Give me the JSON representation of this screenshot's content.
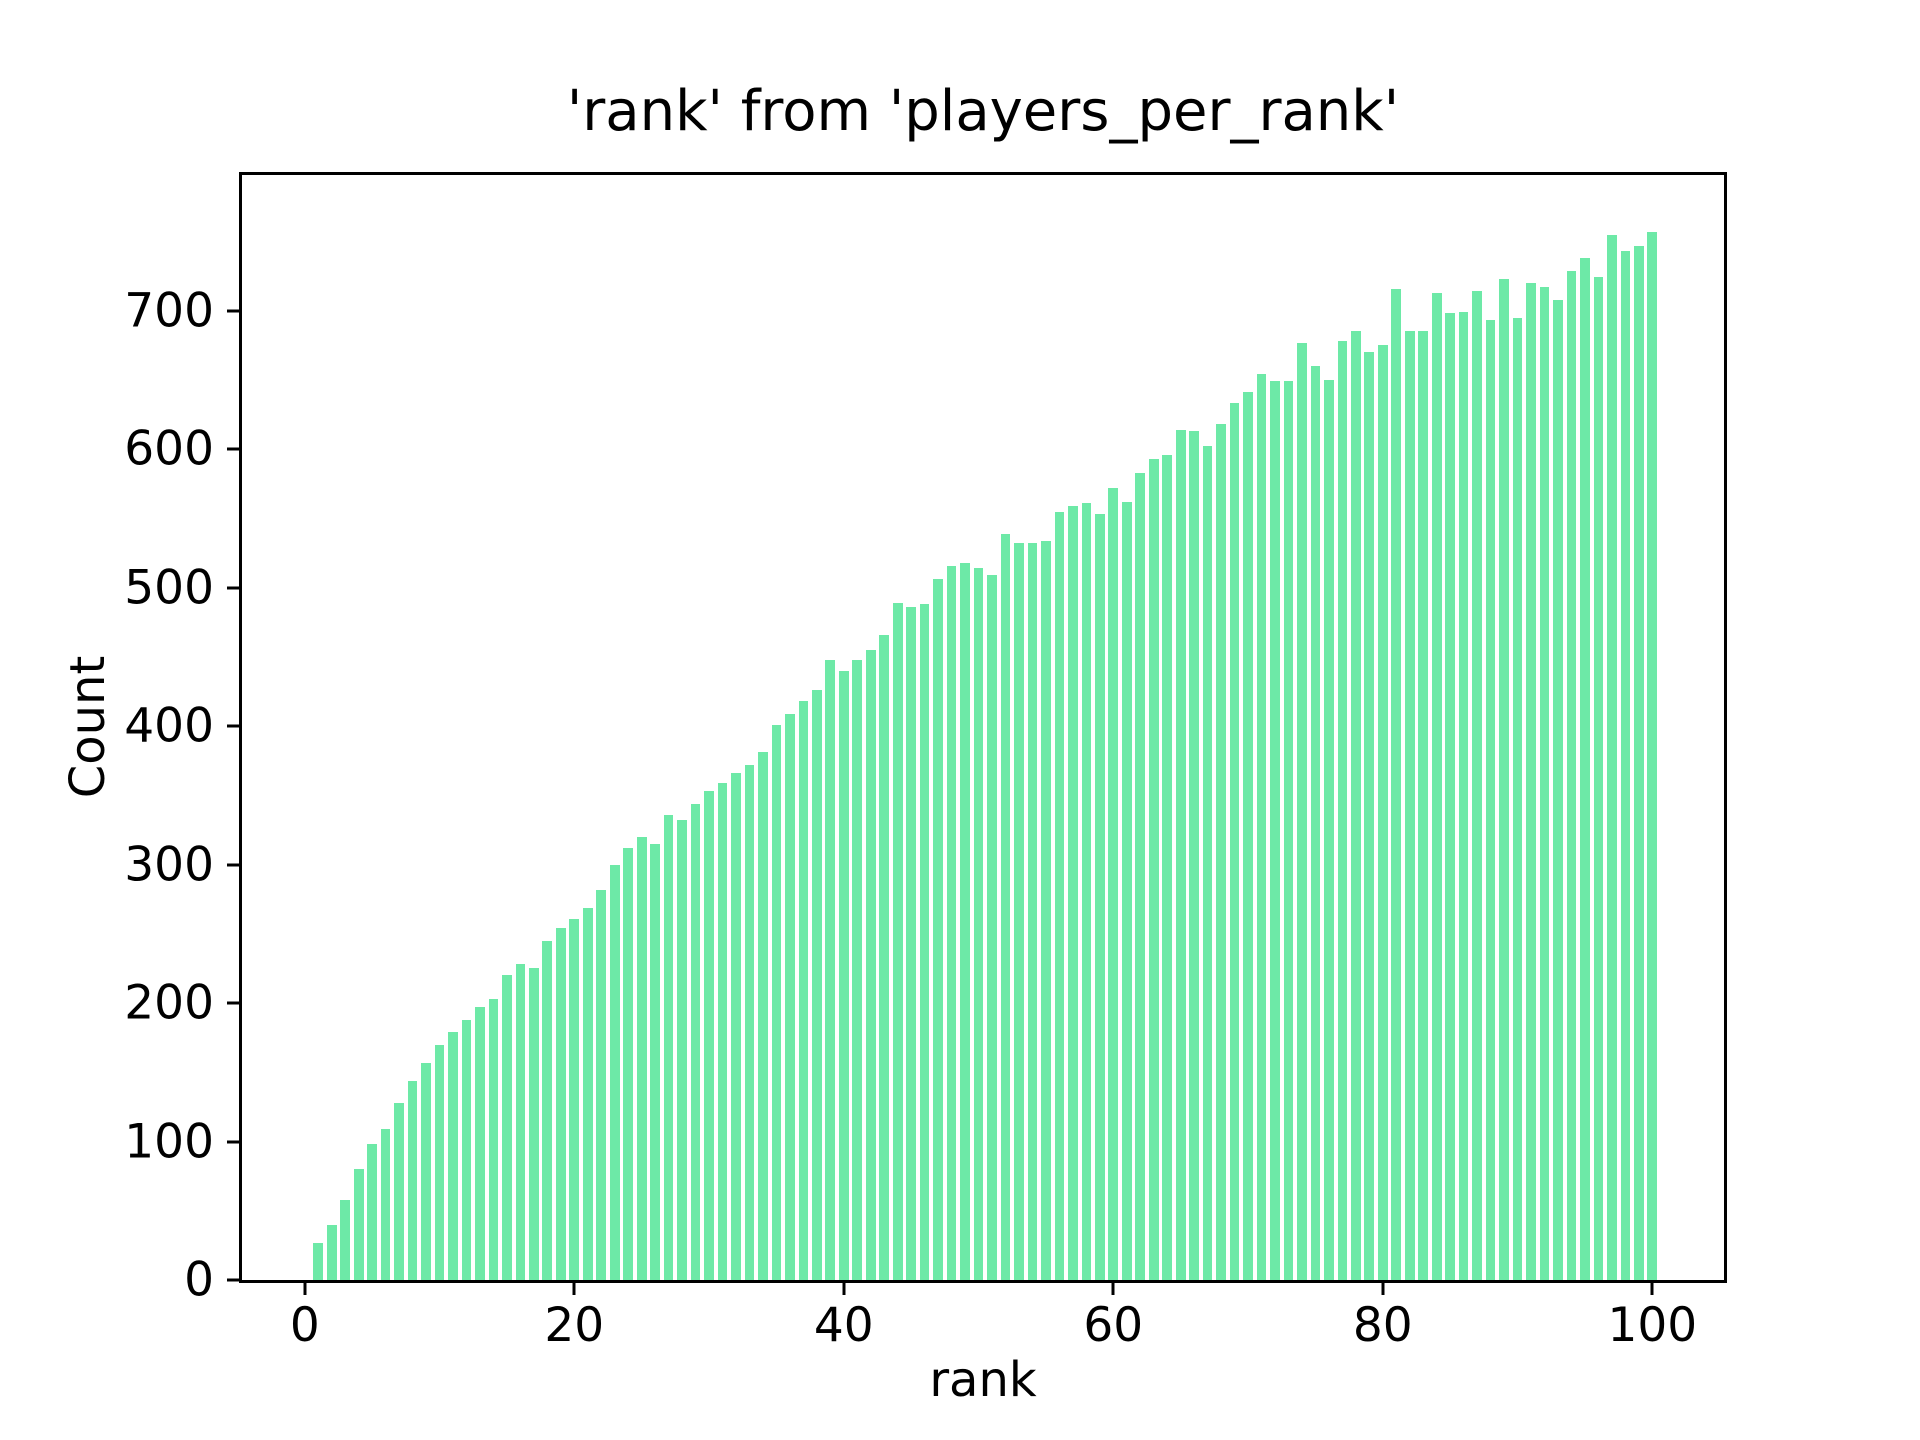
{
  "figure": {
    "background": "#ffffff"
  },
  "chart_data": {
    "type": "bar",
    "title": "'rank' from 'players_per_rank'",
    "xlabel": "rank",
    "ylabel": "Count",
    "x": [
      1,
      2,
      3,
      4,
      5,
      6,
      7,
      8,
      9,
      10,
      11,
      12,
      13,
      14,
      15,
      16,
      17,
      18,
      19,
      20,
      21,
      22,
      23,
      24,
      25,
      26,
      27,
      28,
      29,
      30,
      31,
      32,
      33,
      34,
      35,
      36,
      37,
      38,
      39,
      40,
      41,
      42,
      43,
      44,
      45,
      46,
      47,
      48,
      49,
      50,
      51,
      52,
      53,
      54,
      55,
      56,
      57,
      58,
      59,
      60,
      61,
      62,
      63,
      64,
      65,
      66,
      67,
      68,
      69,
      70,
      71,
      72,
      73,
      74,
      75,
      76,
      77,
      78,
      79,
      80,
      81,
      82,
      83,
      84,
      85,
      86,
      87,
      88,
      89,
      90,
      91,
      92,
      93,
      94,
      95,
      96,
      97,
      98,
      99,
      100
    ],
    "values": [
      27,
      40,
      58,
      80,
      98,
      109,
      128,
      144,
      157,
      170,
      179,
      188,
      197,
      203,
      220,
      228,
      225,
      245,
      254,
      261,
      269,
      282,
      300,
      312,
      320,
      315,
      336,
      332,
      344,
      353,
      359,
      366,
      372,
      381,
      401,
      409,
      418,
      426,
      448,
      440,
      448,
      455,
      466,
      489,
      486,
      488,
      506,
      516,
      518,
      514,
      509,
      539,
      532,
      532,
      534,
      555,
      559,
      561,
      553,
      572,
      562,
      583,
      593,
      596,
      614,
      613,
      602,
      618,
      633,
      641,
      654,
      649,
      649,
      677,
      660,
      650,
      678,
      685,
      670,
      675,
      716,
      685,
      685,
      713,
      698,
      699,
      714,
      693,
      723,
      695,
      720,
      717,
      708,
      729,
      738,
      724,
      755,
      743,
      747,
      757
    ],
    "bar_color": "#6de9a7",
    "axis_color": "#000000",
    "text_color": "#000000",
    "bar_width": 0.72,
    "xlim": [
      -4.66,
      105.32
    ],
    "ylim": [
      0,
      798
    ],
    "xticks": [
      0,
      20,
      40,
      60,
      80,
      100
    ],
    "yticks": [
      0,
      100,
      200,
      300,
      400,
      500,
      600,
      700
    ],
    "grid": false,
    "legend": null
  }
}
